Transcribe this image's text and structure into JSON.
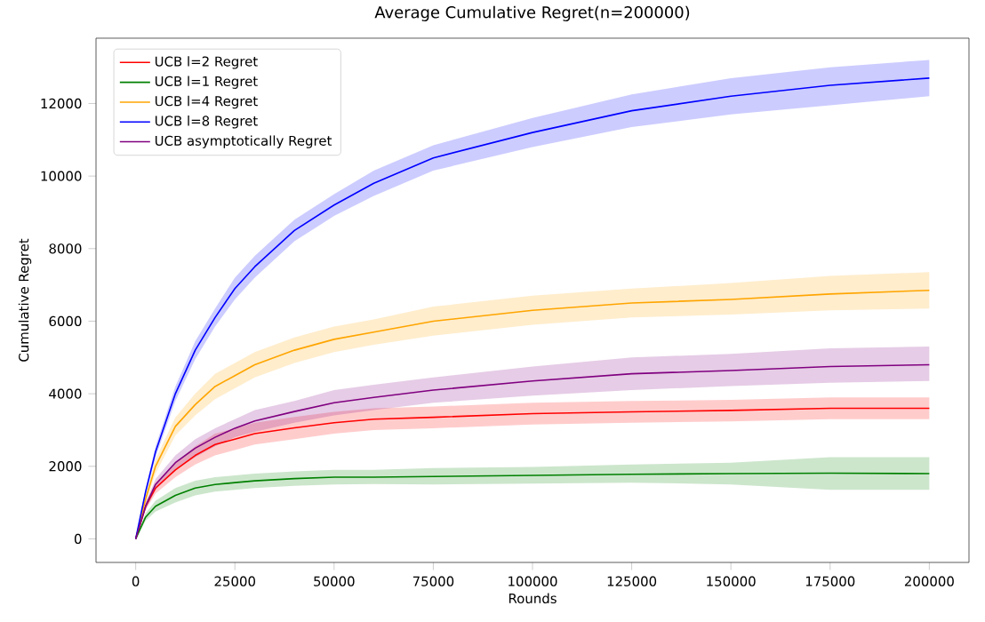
{
  "chart_data": {
    "type": "line",
    "title": "Average Cumulative Regret(n=200000)",
    "xlabel": "Rounds",
    "ylabel": "Cumulative Regret",
    "x": [
      0,
      2500,
      5000,
      10000,
      15000,
      20000,
      25000,
      30000,
      40000,
      50000,
      60000,
      75000,
      100000,
      125000,
      150000,
      175000,
      200000
    ],
    "series": [
      {
        "name": "UCB l=2 Regret",
        "color": "#ff0000",
        "values": [
          0,
          900,
          1400,
          1900,
          2300,
          2600,
          2750,
          2900,
          3060,
          3200,
          3300,
          3350,
          3450,
          3500,
          3540,
          3600,
          3600
        ],
        "lower": [
          0,
          800,
          1250,
          1700,
          2050,
          2300,
          2450,
          2600,
          2750,
          2900,
          3000,
          3050,
          3150,
          3200,
          3240,
          3300,
          3300
        ],
        "upper": [
          0,
          1000,
          1550,
          2100,
          2550,
          2900,
          3050,
          3200,
          3360,
          3500,
          3600,
          3650,
          3750,
          3800,
          3830,
          3900,
          3900
        ]
      },
      {
        "name": "UCB l=1 Regret",
        "color": "#008000",
        "values": [
          0,
          600,
          900,
          1200,
          1400,
          1500,
          1550,
          1600,
          1660,
          1700,
          1700,
          1720,
          1750,
          1780,
          1800,
          1810,
          1800
        ],
        "lower": [
          0,
          500,
          750,
          1000,
          1200,
          1300,
          1350,
          1400,
          1460,
          1500,
          1510,
          1500,
          1520,
          1550,
          1500,
          1350,
          1350
        ],
        "upper": [
          0,
          700,
          1050,
          1400,
          1600,
          1700,
          1750,
          1800,
          1860,
          1900,
          1900,
          1950,
          1980,
          2050,
          2100,
          2250,
          2250
        ]
      },
      {
        "name": "UCB l=4 Regret",
        "color": "#ffa500",
        "values": [
          0,
          1100,
          2000,
          3100,
          3700,
          4200,
          4500,
          4800,
          5200,
          5500,
          5700,
          6000,
          6300,
          6500,
          6600,
          6750,
          6850
        ],
        "lower": [
          0,
          1000,
          1800,
          2850,
          3400,
          3850,
          4150,
          4450,
          4850,
          5150,
          5350,
          5600,
          5900,
          6100,
          6180,
          6300,
          6350
        ],
        "upper": [
          0,
          1200,
          2200,
          3350,
          4000,
          4550,
          4850,
          5150,
          5550,
          5850,
          6050,
          6400,
          6700,
          6900,
          7050,
          7250,
          7350
        ]
      },
      {
        "name": "UCB l=8 Regret",
        "color": "#0000ff",
        "values": [
          0,
          1300,
          2400,
          4000,
          5200,
          6100,
          6900,
          7500,
          8500,
          9200,
          9800,
          10500,
          11200,
          11800,
          12200,
          12500,
          12700
        ],
        "lower": [
          0,
          1200,
          2250,
          3800,
          4950,
          5850,
          6600,
          7200,
          8200,
          8900,
          9450,
          10150,
          10800,
          11350,
          11700,
          11950,
          12200
        ],
        "upper": [
          0,
          1400,
          2550,
          4200,
          5450,
          6350,
          7200,
          7800,
          8800,
          9500,
          10150,
          10850,
          11600,
          12250,
          12700,
          13000,
          13200
        ]
      },
      {
        "name": "UCB asymptotically Regret",
        "color": "#800080",
        "values": [
          0,
          900,
          1500,
          2100,
          2500,
          2800,
          3050,
          3250,
          3510,
          3750,
          3900,
          4100,
          4350,
          4550,
          4640,
          4750,
          4800
        ],
        "lower": [
          0,
          800,
          1350,
          1900,
          2250,
          2550,
          2800,
          2950,
          3200,
          3400,
          3550,
          3750,
          3950,
          4100,
          4210,
          4300,
          4350
        ],
        "upper": [
          0,
          1000,
          1650,
          2300,
          2750,
          3050,
          3300,
          3550,
          3800,
          4100,
          4250,
          4450,
          4750,
          5000,
          5100,
          5250,
          5300
        ]
      }
    ],
    "xlim": [
      -10000,
      210000
    ],
    "ylim": [
      -650,
      13800
    ],
    "xticks": [
      0,
      25000,
      50000,
      75000,
      100000,
      125000,
      150000,
      175000,
      200000
    ],
    "yticks": [
      0,
      2000,
      4000,
      6000,
      8000,
      10000,
      12000
    ],
    "legend": "top left",
    "grid": false,
    "marker": "none",
    "line_style": "solid"
  }
}
